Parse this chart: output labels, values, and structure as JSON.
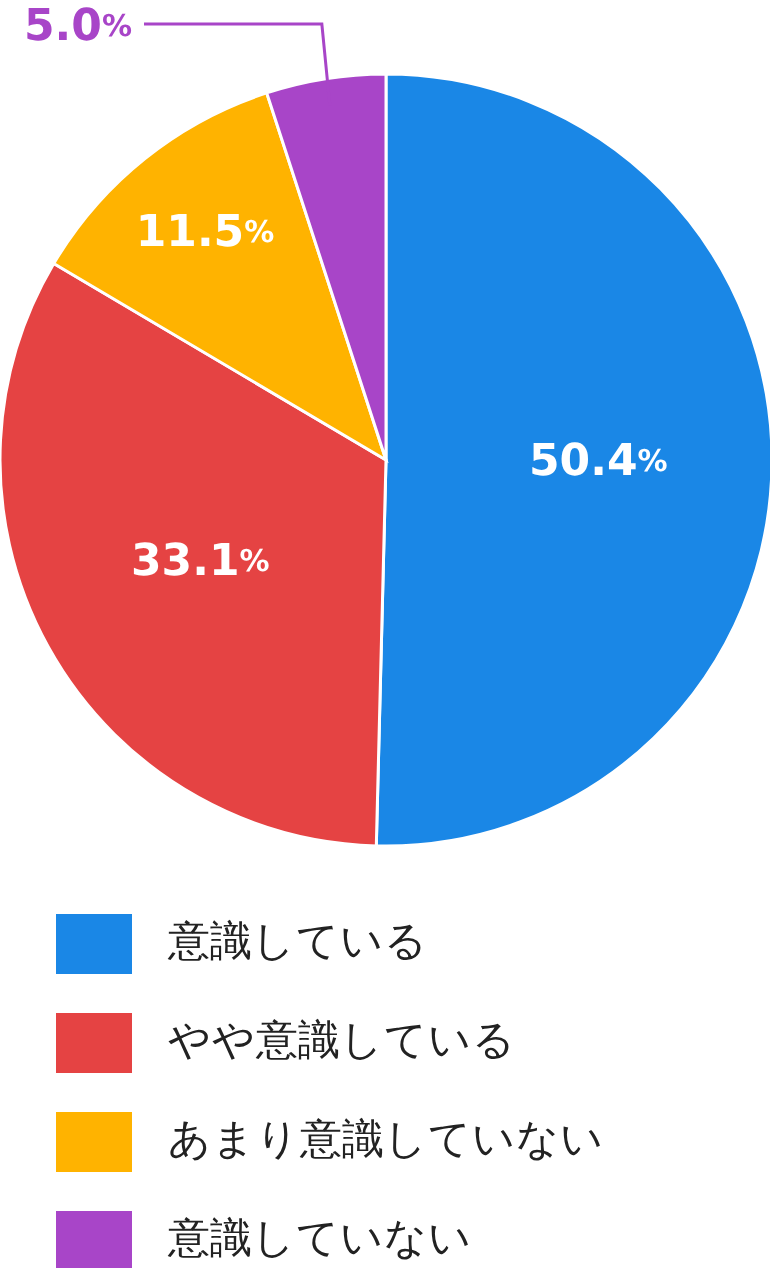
{
  "chart_data": {
    "type": "pie",
    "categories": [
      "意識している",
      "やや意識している",
      "あまり意識していない",
      "意識していない"
    ],
    "values": [
      50.4,
      33.1,
      11.5,
      5.0
    ],
    "colors": [
      "#1a87e6",
      "#e54343",
      "#ffb300",
      "#a845c8"
    ],
    "value_labels": [
      "50.4%",
      "33.1%",
      "11.5%",
      "5.0%"
    ],
    "legend": "bottom"
  }
}
